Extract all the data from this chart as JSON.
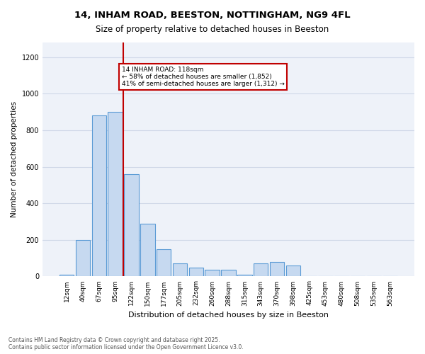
{
  "title_line1": "14, INHAM ROAD, BEESTON, NOTTINGHAM, NG9 4FL",
  "title_line2": "Size of property relative to detached houses in Beeston",
  "xlabel": "Distribution of detached houses by size in Beeston",
  "ylabel": "Number of detached properties",
  "categories": [
    "12sqm",
    "40sqm",
    "67sqm",
    "95sqm",
    "122sqm",
    "150sqm",
    "177sqm",
    "205sqm",
    "232sqm",
    "260sqm",
    "288sqm",
    "315sqm",
    "343sqm",
    "370sqm",
    "398sqm",
    "425sqm",
    "453sqm",
    "480sqm",
    "508sqm",
    "535sqm",
    "563sqm"
  ],
  "values": [
    10,
    200,
    880,
    900,
    560,
    290,
    150,
    70,
    50,
    35,
    35,
    10,
    70,
    80,
    60,
    3,
    2,
    2,
    1,
    1,
    1
  ],
  "bar_color": "#c6d9f0",
  "bar_edge_color": "#5b9bd5",
  "vline_x": 4.0,
  "vline_color": "#c00000",
  "annotation_text": "14 INHAM ROAD: 118sqm\n← 58% of detached houses are smaller (1,852)\n41% of semi-detached houses are larger (1,312) →",
  "annotation_box_color": "#c00000",
  "ylim": [
    0,
    1280
  ],
  "yticks": [
    0,
    200,
    400,
    600,
    800,
    1000,
    1200
  ],
  "grid_color": "#d0d8e8",
  "background_color": "#eef2f9",
  "footnote": "Contains HM Land Registry data © Crown copyright and database right 2025.\nContains public sector information licensed under the Open Government Licence v3.0."
}
